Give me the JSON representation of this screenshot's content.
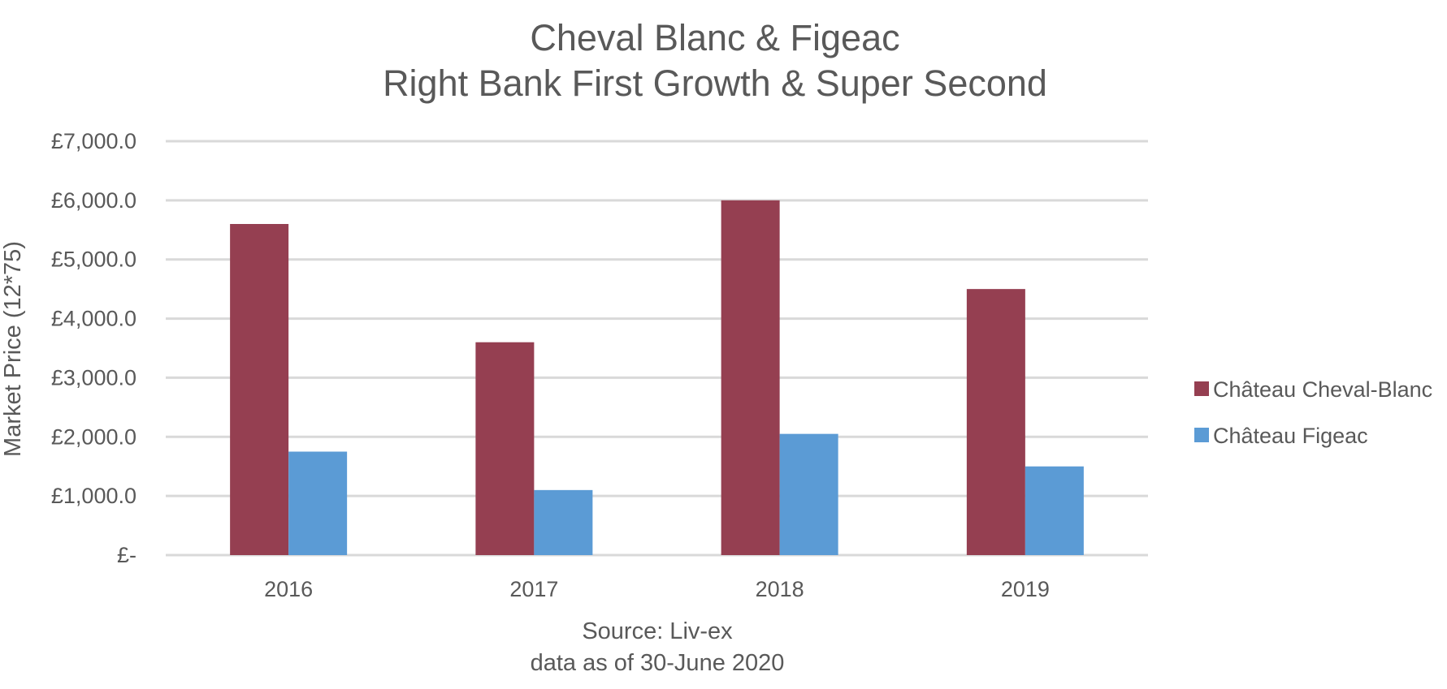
{
  "chart_data": {
    "type": "bar",
    "title": [
      "Cheval Blanc & Figeac",
      "Right Bank First Growth & Super Second"
    ],
    "ylabel": "Market Price (12*75)",
    "xlabel": "",
    "source_lines": [
      "Source: Liv-ex",
      "data as of 30-June 2020"
    ],
    "categories": [
      "2016",
      "2017",
      "2018",
      "2019"
    ],
    "series": [
      {
        "name": "Château Cheval-Blanc",
        "color": "#953f51",
        "values": [
          5600,
          3600,
          6000,
          4500
        ]
      },
      {
        "name": "Château Figeac",
        "color": "#5b9bd5",
        "values": [
          1750,
          1100,
          2050,
          1500
        ]
      }
    ],
    "ylim": [
      0,
      7000
    ],
    "yticks": [
      {
        "value": 0,
        "label": "£-"
      },
      {
        "value": 1000,
        "label": "£1,000.0"
      },
      {
        "value": 2000,
        "label": "£2,000.0"
      },
      {
        "value": 3000,
        "label": "£3,000.0"
      },
      {
        "value": 4000,
        "label": "£4,000.0"
      },
      {
        "value": 5000,
        "label": "£5,000.0"
      },
      {
        "value": 6000,
        "label": "£6,000.0"
      },
      {
        "value": 7000,
        "label": "£7,000.0"
      }
    ],
    "grid": true,
    "legend_position": "right"
  }
}
